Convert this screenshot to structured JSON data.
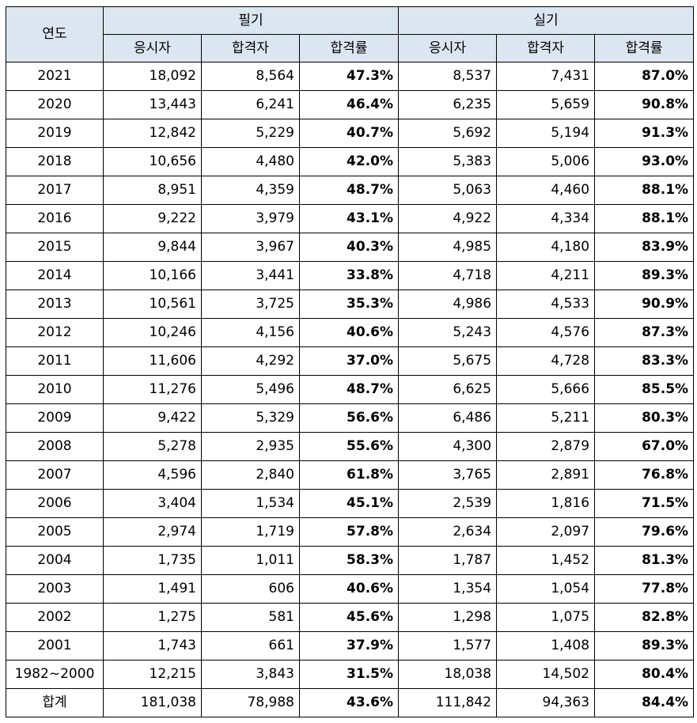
{
  "headers": {
    "year": "연도",
    "written": "필기",
    "practical": "실기",
    "applicants": "응시자",
    "passed": "합격자",
    "rate": "합격률"
  },
  "rows": [
    {
      "year": "2021",
      "w_app": "18,092",
      "w_pass": "8,564",
      "w_rate": "47.3%",
      "p_app": "8,537",
      "p_pass": "7,431",
      "p_rate": "87.0%"
    },
    {
      "year": "2020",
      "w_app": "13,443",
      "w_pass": "6,241",
      "w_rate": "46.4%",
      "p_app": "6,235",
      "p_pass": "5,659",
      "p_rate": "90.8%"
    },
    {
      "year": "2019",
      "w_app": "12,842",
      "w_pass": "5,229",
      "w_rate": "40.7%",
      "p_app": "5,692",
      "p_pass": "5,194",
      "p_rate": "91.3%"
    },
    {
      "year": "2018",
      "w_app": "10,656",
      "w_pass": "4,480",
      "w_rate": "42.0%",
      "p_app": "5,383",
      "p_pass": "5,006",
      "p_rate": "93.0%"
    },
    {
      "year": "2017",
      "w_app": "8,951",
      "w_pass": "4,359",
      "w_rate": "48.7%",
      "p_app": "5,063",
      "p_pass": "4,460",
      "p_rate": "88.1%"
    },
    {
      "year": "2016",
      "w_app": "9,222",
      "w_pass": "3,979",
      "w_rate": "43.1%",
      "p_app": "4,922",
      "p_pass": "4,334",
      "p_rate": "88.1%"
    },
    {
      "year": "2015",
      "w_app": "9,844",
      "w_pass": "3,967",
      "w_rate": "40.3%",
      "p_app": "4,985",
      "p_pass": "4,180",
      "p_rate": "83.9%"
    },
    {
      "year": "2014",
      "w_app": "10,166",
      "w_pass": "3,441",
      "w_rate": "33.8%",
      "p_app": "4,718",
      "p_pass": "4,211",
      "p_rate": "89.3%"
    },
    {
      "year": "2013",
      "w_app": "10,561",
      "w_pass": "3,725",
      "w_rate": "35.3%",
      "p_app": "4,986",
      "p_pass": "4,533",
      "p_rate": "90.9%"
    },
    {
      "year": "2012",
      "w_app": "10,246",
      "w_pass": "4,156",
      "w_rate": "40.6%",
      "p_app": "5,243",
      "p_pass": "4,576",
      "p_rate": "87.3%"
    },
    {
      "year": "2011",
      "w_app": "11,606",
      "w_pass": "4,292",
      "w_rate": "37.0%",
      "p_app": "5,675",
      "p_pass": "4,728",
      "p_rate": "83.3%"
    },
    {
      "year": "2010",
      "w_app": "11,276",
      "w_pass": "5,496",
      "w_rate": "48.7%",
      "p_app": "6,625",
      "p_pass": "5,666",
      "p_rate": "85.5%"
    },
    {
      "year": "2009",
      "w_app": "9,422",
      "w_pass": "5,329",
      "w_rate": "56.6%",
      "p_app": "6,486",
      "p_pass": "5,211",
      "p_rate": "80.3%"
    },
    {
      "year": "2008",
      "w_app": "5,278",
      "w_pass": "2,935",
      "w_rate": "55.6%",
      "p_app": "4,300",
      "p_pass": "2,879",
      "p_rate": "67.0%"
    },
    {
      "year": "2007",
      "w_app": "4,596",
      "w_pass": "2,840",
      "w_rate": "61.8%",
      "p_app": "3,765",
      "p_pass": "2,891",
      "p_rate": "76.8%"
    },
    {
      "year": "2006",
      "w_app": "3,404",
      "w_pass": "1,534",
      "w_rate": "45.1%",
      "p_app": "2,539",
      "p_pass": "1,816",
      "p_rate": "71.5%"
    },
    {
      "year": "2005",
      "w_app": "2,974",
      "w_pass": "1,719",
      "w_rate": "57.8%",
      "p_app": "2,634",
      "p_pass": "2,097",
      "p_rate": "79.6%"
    },
    {
      "year": "2004",
      "w_app": "1,735",
      "w_pass": "1,011",
      "w_rate": "58.3%",
      "p_app": "1,787",
      "p_pass": "1,452",
      "p_rate": "81.3%"
    },
    {
      "year": "2003",
      "w_app": "1,491",
      "w_pass": "606",
      "w_rate": "40.6%",
      "p_app": "1,354",
      "p_pass": "1,054",
      "p_rate": "77.8%"
    },
    {
      "year": "2002",
      "w_app": "1,275",
      "w_pass": "581",
      "w_rate": "45.6%",
      "p_app": "1,298",
      "p_pass": "1,075",
      "p_rate": "82.8%"
    },
    {
      "year": "2001",
      "w_app": "1,743",
      "w_pass": "661",
      "w_rate": "37.9%",
      "p_app": "1,577",
      "p_pass": "1,408",
      "p_rate": "89.3%"
    },
    {
      "year": "1982~2000",
      "w_app": "12,215",
      "w_pass": "3,843",
      "w_rate": "31.5%",
      "p_app": "18,038",
      "p_pass": "14,502",
      "p_rate": "80.4%"
    },
    {
      "year": "합계",
      "w_app": "181,038",
      "w_pass": "78,988",
      "w_rate": "43.6%",
      "p_app": "111,842",
      "p_pass": "94,363",
      "p_rate": "84.4%"
    }
  ],
  "colors": {
    "header_bg": "#dce6f1",
    "border": "#000000"
  }
}
